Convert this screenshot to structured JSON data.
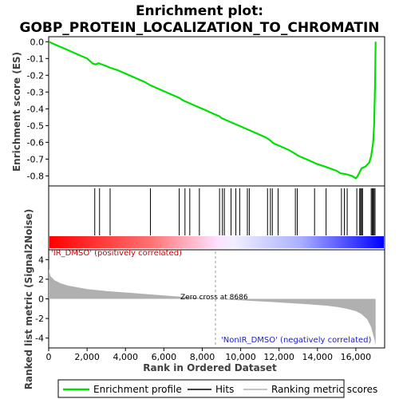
{
  "chart_data": {
    "type": "line",
    "title_line1": "Enrichment plot:",
    "title_line2": "GOBP_PROTEIN_LOCALIZATION_TO_CHROMATIN",
    "es_panel": {
      "ylabel": "Enrichment score (ES)",
      "ylim": [
        -0.86,
        0.03
      ],
      "yticks": [
        0.0,
        -0.1,
        -0.2,
        -0.3,
        -0.4,
        -0.5,
        -0.6,
        -0.7,
        -0.8
      ],
      "ytick_labels": [
        "0.0",
        "-0.1",
        "-0.2",
        "-0.3",
        "-0.4",
        "-0.5",
        "-0.6",
        "-0.7",
        "-0.8"
      ],
      "line_color": "#00e000",
      "series": [
        {
          "name": "Enrichment profile",
          "x": [
            0,
            500,
            1000,
            1500,
            2000,
            2300,
            2450,
            2600,
            3000,
            3200,
            3600,
            4000,
            4500,
            5000,
            5300,
            6000,
            6500,
            6800,
            7000,
            7300,
            7800,
            8300,
            8686,
            8900,
            9000,
            9500,
            10000,
            10400,
            10800,
            11300,
            11500,
            11700,
            12000,
            12500,
            12800,
            13000,
            13500,
            14000,
            14400,
            15000,
            15200,
            15500,
            15800,
            16000,
            16100,
            16300,
            16500,
            16700,
            16800,
            16900,
            16950,
            17000,
            17030
          ],
          "y": [
            0.0,
            -0.025,
            -0.05,
            -0.075,
            -0.1,
            -0.13,
            -0.135,
            -0.128,
            -0.145,
            -0.155,
            -0.17,
            -0.19,
            -0.215,
            -0.24,
            -0.26,
            -0.295,
            -0.32,
            -0.335,
            -0.35,
            -0.365,
            -0.39,
            -0.415,
            -0.435,
            -0.445,
            -0.455,
            -0.48,
            -0.505,
            -0.525,
            -0.545,
            -0.57,
            -0.585,
            -0.605,
            -0.62,
            -0.645,
            -0.665,
            -0.68,
            -0.705,
            -0.73,
            -0.745,
            -0.77,
            -0.785,
            -0.79,
            -0.8,
            -0.815,
            -0.8,
            -0.755,
            -0.745,
            -0.72,
            -0.68,
            -0.6,
            -0.5,
            -0.25,
            0.0
          ]
        }
      ]
    },
    "hits_panel": {
      "hit_ranks": [
        2400,
        2650,
        3200,
        5300,
        6800,
        7100,
        7350,
        7850,
        8900,
        9050,
        9150,
        9500,
        9750,
        9950,
        10350,
        10450,
        11400,
        11550,
        11650,
        11950,
        12850,
        12950,
        13850,
        14450,
        15250,
        15400,
        15550,
        16050,
        16200,
        16250,
        16300,
        16350,
        16800,
        16850,
        16900,
        16950,
        17000
      ]
    },
    "metric_panel": {
      "ylabel": "Ranked list metric (Signal2Noise)",
      "ylim": [
        -5,
        5
      ],
      "yticks": [
        4,
        2,
        0,
        -2,
        -4
      ],
      "ytick_labels": [
        "4",
        "2",
        "0",
        "-2",
        "-4"
      ],
      "x": [
        0,
        100,
        300,
        600,
        1000,
        2000,
        3000,
        4000,
        5000,
        6000,
        7000,
        8000,
        8686,
        9500,
        10500,
        11500,
        12500,
        13500,
        14500,
        15000,
        15500,
        16000,
        16300,
        16600,
        16800,
        16950,
        17030
      ],
      "values": [
        3.0,
        2.3,
        1.9,
        1.6,
        1.35,
        1.0,
        0.8,
        0.65,
        0.5,
        0.35,
        0.2,
        0.08,
        0.0,
        -0.1,
        -0.2,
        -0.3,
        -0.42,
        -0.55,
        -0.7,
        -0.82,
        -1.0,
        -1.25,
        -1.55,
        -2.1,
        -2.9,
        -4.0,
        -4.7
      ],
      "zero_cross_label": "Zero cross at 8686",
      "pos_label": "'IR_DMSO' (positively correlated)",
      "neg_label": "'NonIR_DMSO' (negatively correlated)"
    },
    "x_axis": {
      "label": "Rank in Ordered Dataset",
      "xlim": [
        0,
        17500
      ],
      "ticks": [
        0,
        2000,
        4000,
        6000,
        8000,
        10000,
        12000,
        14000,
        16000
      ],
      "tick_labels": [
        "0",
        "2,000",
        "4,000",
        "6,000",
        "8,000",
        "10,000",
        "12,000",
        "14,000",
        "16,000"
      ]
    },
    "legend": {
      "placement": "bottom",
      "items": [
        "Enrichment profile",
        "Hits",
        "Ranking metric scores"
      ]
    },
    "colors": {
      "es_line": "#00e000",
      "hit_line": "#000000",
      "metric_fill": "#b0b0b0",
      "pos_red": "#ff0000",
      "mid_white": "#ffffff",
      "neg_blue": "#0000ff"
    }
  }
}
